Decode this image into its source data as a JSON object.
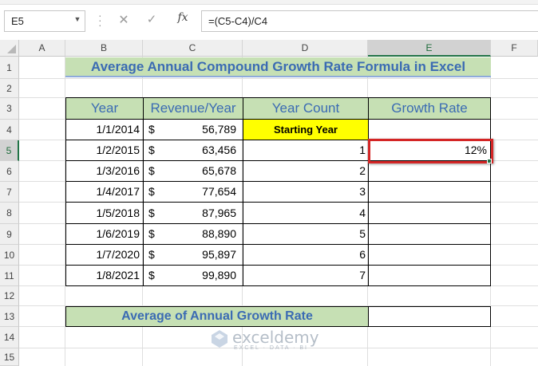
{
  "name_box": {
    "value": "E5"
  },
  "formula_bar": {
    "formula": "=(C5-C4)/C4",
    "fx_label": "fx",
    "cancel_glyph": "✕",
    "enter_glyph": "✓"
  },
  "columns": [
    "A",
    "B",
    "C",
    "D",
    "E",
    "F"
  ],
  "rows": [
    "1",
    "2",
    "3",
    "4",
    "5",
    "6",
    "7",
    "8",
    "9",
    "10",
    "11",
    "12",
    "13",
    "14",
    "15"
  ],
  "selected_cell": {
    "column": "E",
    "row": "5"
  },
  "title": "Average Annual Compound Growth Rate Formula in Excel",
  "table": {
    "headers": [
      "Year",
      "Revenue/Year",
      "Year Count",
      "Growth Rate"
    ],
    "starting_year_label": "Starting Year",
    "rows": [
      {
        "year": "1/1/2014",
        "currency": "$",
        "revenue": "56,789",
        "count": "",
        "growth": ""
      },
      {
        "year": "1/2/2015",
        "currency": "$",
        "revenue": "63,456",
        "count": "1",
        "growth": "12%"
      },
      {
        "year": "1/3/2016",
        "currency": "$",
        "revenue": "65,678",
        "count": "2",
        "growth": ""
      },
      {
        "year": "1/4/2017",
        "currency": "$",
        "revenue": "77,654",
        "count": "3",
        "growth": ""
      },
      {
        "year": "1/5/2018",
        "currency": "$",
        "revenue": "87,965",
        "count": "4",
        "growth": ""
      },
      {
        "year": "1/6/2019",
        "currency": "$",
        "revenue": "88,890",
        "count": "5",
        "growth": ""
      },
      {
        "year": "1/7/2020",
        "currency": "$",
        "revenue": "95,897",
        "count": "6",
        "growth": ""
      },
      {
        "year": "1/8/2021",
        "currency": "$",
        "revenue": "99,890",
        "count": "7",
        "growth": ""
      }
    ]
  },
  "average_label": "Average of Annual Growth Rate",
  "average_value": "",
  "watermark": {
    "name": "exceldemy",
    "tagline": "EXCEL · DATA · BI"
  },
  "colors": {
    "header_fill": "#c6e0b4",
    "header_text": "#3b6bb3",
    "highlight_yellow": "#ffff00",
    "red_box": "#d42525",
    "excel_green": "#217346"
  }
}
